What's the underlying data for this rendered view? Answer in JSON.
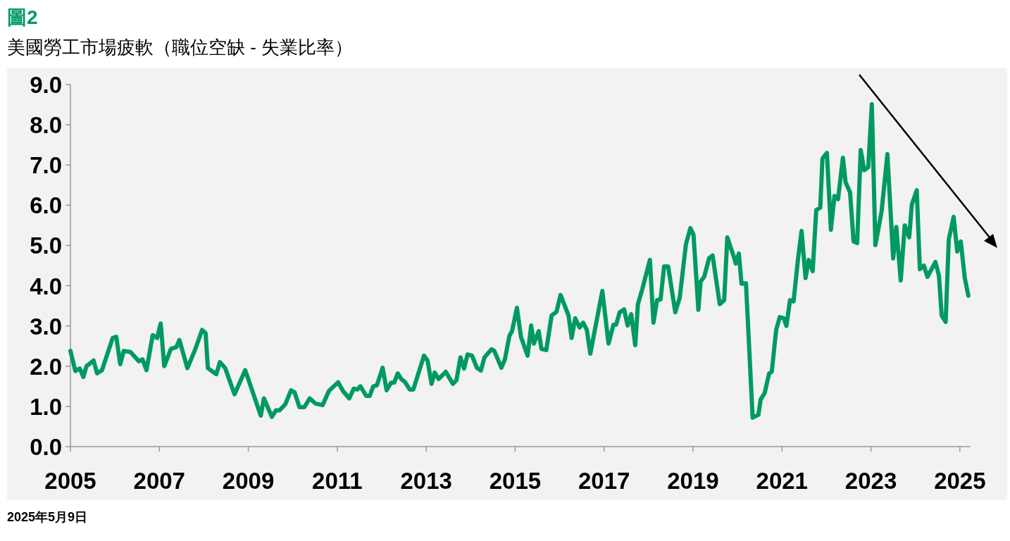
{
  "chart_data": {
    "type": "line",
    "title": "圖2",
    "subtitle": "美國勞工市場疲軟（職位空缺 - 失業比率）",
    "annotations": [
      "2025年5月9日"
    ],
    "xlim": [
      2005,
      2025.24
    ],
    "ylim": [
      0,
      9
    ],
    "xticks": [
      2005,
      2007,
      2009,
      2011,
      2013,
      2015,
      2017,
      2019,
      2021,
      2023,
      2025
    ],
    "yticks": [
      {
        "value": 0,
        "label": "0.0"
      },
      {
        "value": 1,
        "label": "1.0"
      },
      {
        "value": 2,
        "label": "2.0"
      },
      {
        "value": 3,
        "label": "3.0"
      },
      {
        "value": 4,
        "label": "4.0"
      },
      {
        "value": 5,
        "label": "5.0"
      },
      {
        "value": 6,
        "label": "6.0"
      },
      {
        "value": 7,
        "label": "7.0"
      },
      {
        "value": 8,
        "label": "8.0"
      },
      {
        "value": 9,
        "label": "9.0"
      }
    ],
    "series": [
      {
        "color": "#009a61",
        "x": [
          2005.0,
          2005.11,
          2005.21,
          2005.29,
          2005.36,
          2005.52,
          2005.6,
          2005.71,
          2005.95,
          2006.03,
          2006.12,
          2006.2,
          2006.35,
          2006.54,
          2006.62,
          2006.71,
          2006.85,
          2006.95,
          2007.03,
          2007.11,
          2007.26,
          2007.38,
          2007.45,
          2007.63,
          2007.8,
          2007.96,
          2008.04,
          2008.09,
          2008.28,
          2008.36,
          2008.48,
          2008.69,
          2008.93,
          2009.28,
          2009.35,
          2009.53,
          2009.62,
          2009.7,
          2009.83,
          2009.96,
          2010.04,
          2010.15,
          2010.26,
          2010.38,
          2010.51,
          2010.67,
          2010.81,
          2011.02,
          2011.13,
          2011.27,
          2011.37,
          2011.45,
          2011.52,
          2011.65,
          2011.73,
          2011.81,
          2011.89,
          2012.02,
          2012.11,
          2012.21,
          2012.28,
          2012.36,
          2012.44,
          2012.52,
          2012.63,
          2012.71,
          2012.95,
          2013.03,
          2013.12,
          2013.19,
          2013.28,
          2013.44,
          2013.6,
          2013.68,
          2013.77,
          2013.85,
          2013.93,
          2014.03,
          2014.14,
          2014.23,
          2014.31,
          2014.47,
          2014.53,
          2014.69,
          2014.77,
          2014.87,
          2014.93,
          2015.04,
          2015.13,
          2015.28,
          2015.36,
          2015.42,
          2015.53,
          2015.59,
          2015.7,
          2015.82,
          2015.93,
          2016.02,
          2016.2,
          2016.27,
          2016.35,
          2016.45,
          2016.53,
          2016.61,
          2016.69,
          2016.96,
          2017.1,
          2017.21,
          2017.27,
          2017.35,
          2017.45,
          2017.53,
          2017.61,
          2017.7,
          2017.76,
          2017.86,
          2018.03,
          2018.11,
          2018.19,
          2018.27,
          2018.35,
          2018.44,
          2018.6,
          2018.7,
          2018.84,
          2018.94,
          2019.01,
          2019.12,
          2019.17,
          2019.25,
          2019.36,
          2019.44,
          2019.6,
          2019.7,
          2019.77,
          2019.92,
          2019.96,
          2020.03,
          2020.09,
          2020.19,
          2020.34,
          2020.47,
          2020.52,
          2020.61,
          2020.71,
          2020.77,
          2020.87,
          2020.95,
          2021.04,
          2021.1,
          2021.18,
          2021.26,
          2021.36,
          2021.44,
          2021.53,
          2021.6,
          2021.69,
          2021.77,
          2021.86,
          2021.91,
          2022.01,
          2022.1,
          2022.18,
          2022.26,
          2022.37,
          2022.43,
          2022.53,
          2022.61,
          2022.69,
          2022.77,
          2022.85,
          2022.94,
          2023.02,
          2023.1,
          2023.24,
          2023.37,
          2023.5,
          2023.57,
          2023.67,
          2023.76,
          2023.86,
          2023.92,
          2024.03,
          2024.1,
          2024.19,
          2024.27,
          2024.45,
          2024.53,
          2024.59,
          2024.68,
          2024.75,
          2024.86,
          2024.94,
          2025.02,
          2025.11,
          2025.19
        ],
        "values": [
          2.38,
          1.88,
          1.94,
          1.73,
          2.0,
          2.14,
          1.82,
          1.9,
          2.7,
          2.73,
          2.05,
          2.38,
          2.35,
          2.12,
          2.17,
          1.9,
          2.77,
          2.7,
          3.06,
          2.0,
          2.43,
          2.47,
          2.65,
          1.95,
          2.4,
          2.9,
          2.82,
          1.95,
          1.8,
          2.1,
          1.95,
          1.3,
          1.9,
          0.77,
          1.2,
          0.74,
          0.9,
          0.9,
          1.05,
          1.4,
          1.35,
          0.98,
          0.98,
          1.2,
          1.07,
          1.03,
          1.38,
          1.6,
          1.38,
          1.2,
          1.44,
          1.42,
          1.5,
          1.26,
          1.26,
          1.5,
          1.52,
          1.96,
          1.4,
          1.59,
          1.59,
          1.82,
          1.68,
          1.61,
          1.42,
          1.42,
          2.26,
          2.14,
          1.56,
          1.84,
          1.68,
          1.86,
          1.56,
          1.65,
          2.22,
          1.94,
          2.29,
          2.26,
          1.96,
          1.89,
          2.22,
          2.42,
          2.38,
          1.96,
          2.17,
          2.75,
          2.87,
          3.45,
          2.73,
          2.26,
          3.01,
          2.56,
          2.87,
          2.43,
          2.4,
          3.26,
          3.35,
          3.77,
          3.26,
          2.7,
          3.19,
          2.96,
          3.08,
          2.91,
          2.31,
          3.87,
          2.56,
          3.03,
          3.03,
          3.34,
          3.41,
          3.01,
          3.29,
          2.52,
          3.54,
          3.92,
          4.64,
          3.08,
          3.64,
          3.66,
          4.48,
          4.48,
          3.34,
          3.7,
          5.03,
          5.43,
          5.27,
          3.4,
          4.1,
          4.22,
          4.68,
          4.75,
          3.54,
          3.64,
          5.2,
          4.71,
          4.55,
          4.8,
          4.05,
          4.06,
          0.72,
          0.79,
          1.17,
          1.33,
          1.82,
          1.86,
          2.91,
          3.22,
          3.19,
          3.0,
          3.64,
          3.61,
          4.66,
          5.36,
          4.19,
          4.64,
          4.36,
          5.88,
          5.94,
          7.16,
          7.3,
          5.39,
          6.23,
          6.15,
          7.18,
          6.57,
          6.32,
          5.1,
          5.06,
          7.37,
          6.87,
          6.95,
          8.51,
          5.01,
          5.85,
          7.27,
          4.68,
          5.46,
          4.13,
          5.5,
          5.2,
          6.02,
          6.37,
          4.41,
          4.5,
          4.22,
          4.59,
          4.24,
          3.26,
          3.1,
          5.15,
          5.71,
          4.85,
          5.1,
          4.19,
          3.75
        ]
      }
    ]
  }
}
